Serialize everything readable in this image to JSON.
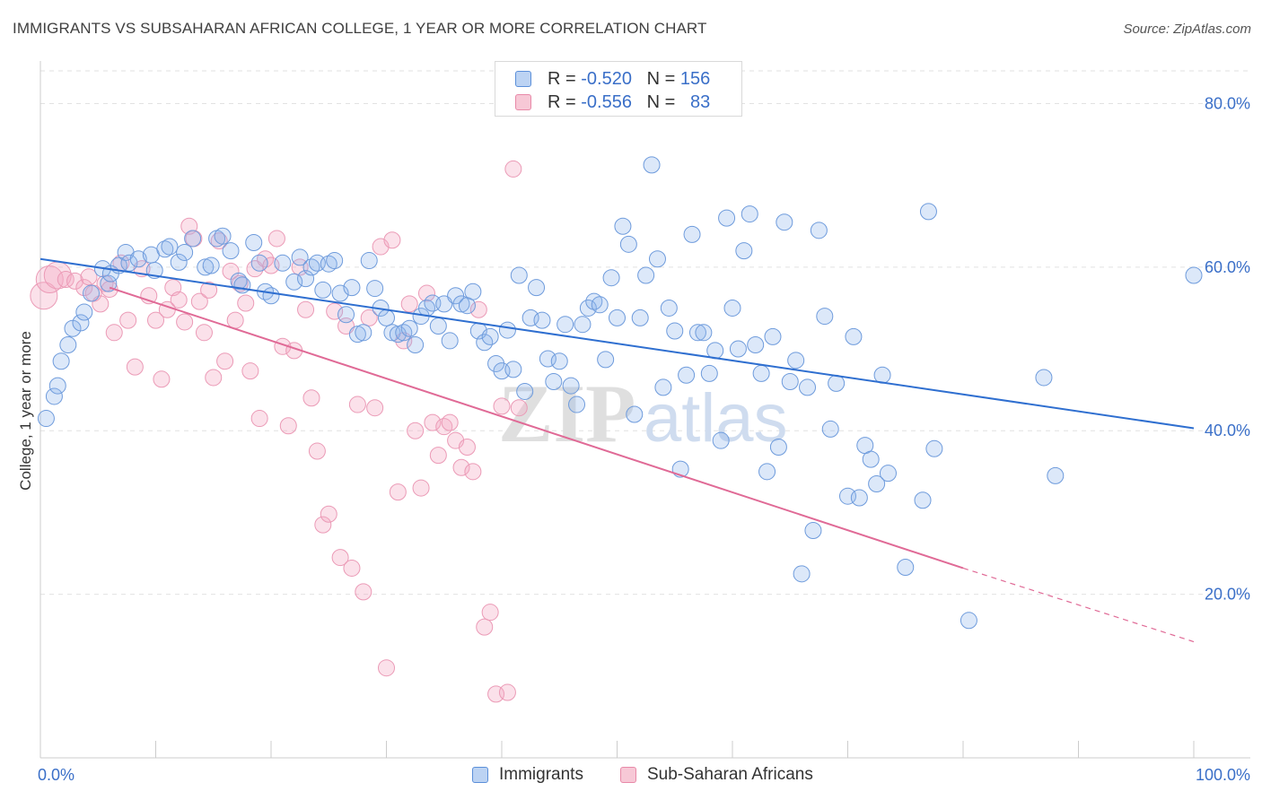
{
  "title": "IMMIGRANTS VS SUBSAHARAN AFRICAN COLLEGE, 1 YEAR OR MORE CORRELATION CHART",
  "source": "Source: ZipAtlas.com",
  "watermark": {
    "zip": "ZIP",
    "atlas": "atlas"
  },
  "legend_top": [
    {
      "r_label": "R = ",
      "r_value": "-0.520",
      "n_label": "N = ",
      "n_value": "156"
    },
    {
      "r_label": "R = ",
      "r_value": "-0.556",
      "n_label": "N = ",
      "n_value": "83"
    }
  ],
  "chart_data": {
    "type": "scatter",
    "title": "IMMIGRANTS VS SUBSAHARAN AFRICAN COLLEGE, 1 YEAR OR MORE CORRELATION CHART",
    "xlabel": "",
    "ylabel": "College, 1 year or more",
    "xlim": [
      0,
      100
    ],
    "ylim": [
      0,
      84
    ],
    "x_tick_labels": [
      "0.0%",
      "100.0%"
    ],
    "y_ticks": [
      20,
      40,
      60,
      80
    ],
    "y_tick_labels": [
      "20.0%",
      "40.0%",
      "60.0%",
      "80.0%"
    ],
    "grid": true,
    "legend_position": "top-center",
    "colors": {
      "immigrants": "#5b8fd9",
      "subsaharan": "#e889a8",
      "immigrants_line": "#2f6fd0",
      "subsaharan_line": "#e06a96"
    },
    "series": [
      {
        "name": "Immigrants",
        "r": -0.52,
        "n": 156,
        "trend": {
          "x0": 0,
          "y0": 61.0,
          "x1": 100,
          "y1": 40.3
        },
        "points": [
          [
            0.5,
            41.5
          ],
          [
            1.2,
            44.2
          ],
          [
            1.5,
            45.5
          ],
          [
            1.8,
            48.5
          ],
          [
            2.4,
            50.5
          ],
          [
            2.8,
            52.5
          ],
          [
            3.5,
            53.2
          ],
          [
            3.8,
            54.5
          ],
          [
            4.4,
            56.8
          ],
          [
            5.4,
            59.8
          ],
          [
            5.9,
            58.0
          ],
          [
            6.1,
            59.2
          ],
          [
            6.8,
            60.2
          ],
          [
            7.4,
            61.8
          ],
          [
            7.7,
            60.5
          ],
          [
            8.5,
            61.0
          ],
          [
            9.6,
            61.5
          ],
          [
            9.9,
            59.6
          ],
          [
            10.8,
            62.2
          ],
          [
            11.2,
            62.5
          ],
          [
            12.0,
            60.6
          ],
          [
            12.5,
            61.8
          ],
          [
            13.2,
            63.5
          ],
          [
            14.3,
            60.0
          ],
          [
            14.8,
            60.2
          ],
          [
            15.3,
            63.5
          ],
          [
            15.8,
            63.8
          ],
          [
            16.5,
            62.0
          ],
          [
            17.2,
            58.3
          ],
          [
            17.5,
            57.8
          ],
          [
            18.5,
            63.0
          ],
          [
            19.0,
            60.5
          ],
          [
            19.5,
            57.0
          ],
          [
            20.0,
            56.5
          ],
          [
            21.0,
            60.5
          ],
          [
            22.0,
            58.2
          ],
          [
            22.5,
            61.2
          ],
          [
            23.0,
            58.6
          ],
          [
            23.5,
            60.0
          ],
          [
            24.0,
            60.5
          ],
          [
            24.5,
            57.2
          ],
          [
            25.0,
            60.4
          ],
          [
            25.5,
            60.8
          ],
          [
            26.0,
            56.8
          ],
          [
            26.5,
            54.2
          ],
          [
            27.0,
            57.5
          ],
          [
            27.5,
            51.8
          ],
          [
            28.0,
            52.0
          ],
          [
            28.5,
            60.8
          ],
          [
            29.0,
            57.4
          ],
          [
            29.5,
            55.0
          ],
          [
            30.0,
            53.8
          ],
          [
            30.5,
            52.0
          ],
          [
            31.0,
            51.8
          ],
          [
            31.5,
            52.0
          ],
          [
            32.0,
            52.5
          ],
          [
            32.5,
            50.5
          ],
          [
            33.0,
            54.0
          ],
          [
            33.5,
            55.0
          ],
          [
            34.0,
            55.6
          ],
          [
            34.5,
            52.8
          ],
          [
            35.0,
            55.5
          ],
          [
            35.5,
            51.0
          ],
          [
            36.0,
            56.5
          ],
          [
            36.5,
            55.5
          ],
          [
            37.0,
            55.3
          ],
          [
            37.5,
            57.0
          ],
          [
            38.0,
            52.2
          ],
          [
            38.5,
            50.8
          ],
          [
            39.0,
            51.5
          ],
          [
            39.5,
            48.2
          ],
          [
            40.0,
            47.3
          ],
          [
            40.5,
            52.3
          ],
          [
            41.0,
            47.5
          ],
          [
            41.5,
            59.0
          ],
          [
            42.0,
            44.8
          ],
          [
            42.5,
            53.8
          ],
          [
            43.0,
            57.5
          ],
          [
            43.5,
            53.5
          ],
          [
            44.0,
            48.8
          ],
          [
            44.5,
            46.0
          ],
          [
            45.0,
            48.5
          ],
          [
            45.5,
            53.0
          ],
          [
            46.0,
            45.5
          ],
          [
            46.5,
            43.2
          ],
          [
            47.0,
            53.0
          ],
          [
            47.5,
            55.0
          ],
          [
            48.0,
            55.8
          ],
          [
            48.5,
            55.4
          ],
          [
            49.0,
            48.7
          ],
          [
            49.5,
            58.7
          ],
          [
            50.0,
            53.8
          ],
          [
            50.5,
            65.0
          ],
          [
            51.0,
            62.8
          ],
          [
            51.5,
            42.0
          ],
          [
            52.0,
            53.8
          ],
          [
            52.5,
            59.0
          ],
          [
            53.0,
            72.5
          ],
          [
            53.5,
            61.0
          ],
          [
            54.0,
            45.3
          ],
          [
            54.5,
            55.0
          ],
          [
            55.0,
            52.2
          ],
          [
            55.5,
            35.3
          ],
          [
            56.0,
            46.8
          ],
          [
            56.5,
            64.0
          ],
          [
            57.0,
            52.0
          ],
          [
            57.5,
            52.0
          ],
          [
            58.0,
            47.0
          ],
          [
            58.5,
            49.8
          ],
          [
            59.0,
            38.8
          ],
          [
            59.5,
            66.0
          ],
          [
            60.0,
            55.0
          ],
          [
            60.5,
            50.0
          ],
          [
            61.0,
            62.0
          ],
          [
            61.5,
            66.5
          ],
          [
            62.0,
            50.5
          ],
          [
            62.5,
            47.0
          ],
          [
            63.0,
            35.0
          ],
          [
            63.5,
            51.5
          ],
          [
            64.0,
            38.0
          ],
          [
            64.5,
            65.5
          ],
          [
            65.0,
            46.0
          ],
          [
            65.5,
            48.6
          ],
          [
            66.0,
            22.5
          ],
          [
            66.5,
            45.3
          ],
          [
            67.0,
            27.8
          ],
          [
            67.5,
            64.5
          ],
          [
            68.0,
            54.0
          ],
          [
            68.5,
            40.2
          ],
          [
            69.0,
            45.8
          ],
          [
            70.0,
            32.0
          ],
          [
            70.5,
            51.5
          ],
          [
            71.0,
            31.8
          ],
          [
            71.5,
            38.2
          ],
          [
            72.0,
            36.5
          ],
          [
            72.5,
            33.5
          ],
          [
            73.0,
            46.8
          ],
          [
            73.5,
            34.8
          ],
          [
            75.0,
            23.3
          ],
          [
            76.5,
            31.5
          ],
          [
            77.0,
            66.8
          ],
          [
            77.5,
            37.8
          ],
          [
            80.5,
            16.8
          ],
          [
            87.0,
            46.5
          ],
          [
            88.0,
            34.5
          ],
          [
            100.0,
            59.0
          ]
        ]
      },
      {
        "name": "Sub-Saharan Africans",
        "r": -0.556,
        "n": 83,
        "trend": {
          "x0": 6,
          "y0": 57.5,
          "x1": 80,
          "y1": 23.2,
          "dashed_to": {
            "x": 100,
            "y": 14.2
          }
        },
        "points": [
          [
            0.3,
            56.5
          ],
          [
            0.8,
            58.5
          ],
          [
            1.5,
            59.0
          ],
          [
            2.2,
            58.5
          ],
          [
            3.0,
            58.3
          ],
          [
            3.8,
            57.5
          ],
          [
            4.2,
            58.8
          ],
          [
            4.6,
            56.8
          ],
          [
            5.2,
            55.5
          ],
          [
            5.6,
            58.0
          ],
          [
            6.0,
            57.3
          ],
          [
            6.4,
            52.0
          ],
          [
            7.0,
            60.5
          ],
          [
            7.6,
            53.5
          ],
          [
            8.2,
            47.8
          ],
          [
            8.8,
            59.8
          ],
          [
            9.4,
            56.5
          ],
          [
            10.0,
            53.5
          ],
          [
            10.5,
            46.3
          ],
          [
            11.0,
            54.8
          ],
          [
            11.5,
            57.5
          ],
          [
            12.0,
            56.0
          ],
          [
            12.5,
            53.3
          ],
          [
            12.9,
            65.0
          ],
          [
            13.3,
            63.5
          ],
          [
            13.8,
            55.8
          ],
          [
            14.2,
            52.0
          ],
          [
            14.6,
            57.2
          ],
          [
            15.0,
            46.5
          ],
          [
            15.5,
            63.2
          ],
          [
            16.0,
            48.5
          ],
          [
            16.5,
            59.5
          ],
          [
            16.9,
            53.5
          ],
          [
            17.3,
            58.0
          ],
          [
            17.8,
            55.6
          ],
          [
            18.2,
            47.3
          ],
          [
            18.6,
            59.8
          ],
          [
            19.0,
            41.5
          ],
          [
            19.5,
            61.0
          ],
          [
            20.0,
            60.2
          ],
          [
            20.5,
            63.5
          ],
          [
            21.0,
            50.3
          ],
          [
            21.5,
            40.6
          ],
          [
            22.0,
            49.8
          ],
          [
            22.5,
            60.0
          ],
          [
            23.0,
            54.8
          ],
          [
            23.5,
            44.0
          ],
          [
            24.0,
            37.5
          ],
          [
            24.5,
            28.5
          ],
          [
            25.0,
            29.8
          ],
          [
            25.5,
            54.6
          ],
          [
            26.0,
            24.5
          ],
          [
            26.5,
            52.8
          ],
          [
            27.0,
            23.2
          ],
          [
            27.5,
            43.2
          ],
          [
            28.0,
            20.3
          ],
          [
            28.5,
            53.8
          ],
          [
            29.0,
            42.8
          ],
          [
            29.5,
            62.5
          ],
          [
            30.0,
            11.0
          ],
          [
            30.5,
            63.3
          ],
          [
            31.0,
            32.5
          ],
          [
            31.5,
            51.0
          ],
          [
            32.0,
            55.5
          ],
          [
            32.5,
            40.0
          ],
          [
            33.0,
            33.0
          ],
          [
            33.5,
            56.8
          ],
          [
            34.0,
            41.0
          ],
          [
            34.5,
            37.0
          ],
          [
            35.0,
            40.5
          ],
          [
            35.5,
            41.0
          ],
          [
            36.0,
            38.8
          ],
          [
            36.5,
            35.5
          ],
          [
            37.0,
            38.0
          ],
          [
            37.5,
            35.0
          ],
          [
            38.0,
            54.8
          ],
          [
            38.5,
            16.0
          ],
          [
            39.0,
            17.8
          ],
          [
            39.5,
            7.8
          ],
          [
            40.0,
            43.0
          ],
          [
            40.5,
            8.0
          ],
          [
            41.0,
            72.0
          ],
          [
            41.5,
            42.8
          ]
        ]
      }
    ]
  },
  "x_axis_labels": {
    "left": "0.0%",
    "right": "100.0%"
  },
  "legend_bottom": [
    {
      "label": "Immigrants"
    },
    {
      "label": "Sub-Saharan Africans"
    }
  ]
}
